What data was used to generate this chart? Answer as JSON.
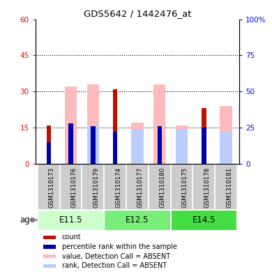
{
  "title": "GDS5642 / 1442476_at",
  "samples": [
    "GSM1310173",
    "GSM1310176",
    "GSM1310179",
    "GSM1310174",
    "GSM1310177",
    "GSM1310180",
    "GSM1310175",
    "GSM1310178",
    "GSM1310181"
  ],
  "age_groups": [
    {
      "label": "E11.5",
      "indices": [
        0,
        1,
        2
      ]
    },
    {
      "label": "E12.5",
      "indices": [
        3,
        4,
        5
      ]
    },
    {
      "label": "E14.5",
      "indices": [
        6,
        7,
        8
      ]
    }
  ],
  "count_values": [
    16,
    0,
    0,
    31,
    0,
    0,
    0,
    23,
    0
  ],
  "rank_values": [
    15,
    28,
    26,
    22,
    0,
    26,
    0,
    25,
    0
  ],
  "value_absent": [
    0,
    32,
    33,
    0,
    17,
    33,
    16,
    0,
    24
  ],
  "rank_absent": [
    0,
    0,
    26,
    0,
    24,
    0,
    24,
    0,
    22
  ],
  "ylim_left": [
    0,
    60
  ],
  "yticks_left": [
    0,
    15,
    30,
    45,
    60
  ],
  "ytick_labels_left": [
    "0",
    "15",
    "30",
    "45",
    "60"
  ],
  "ytick_labels_right": [
    "0",
    "25",
    "50",
    "75",
    "100%"
  ],
  "color_count": "#bb1100",
  "color_rank": "#0000aa",
  "color_value_absent": "#ffbbbb",
  "color_rank_absent": "#bbccff",
  "age_group_colors": [
    "#ccffcc",
    "#77ee77",
    "#44dd44"
  ],
  "sample_box_color": "#cccccc",
  "legend_items": [
    {
      "label": "count",
      "color": "#bb1100"
    },
    {
      "label": "percentile rank within the sample",
      "color": "#0000aa"
    },
    {
      "label": "value, Detection Call = ABSENT",
      "color": "#ffbbbb"
    },
    {
      "label": "rank, Detection Call = ABSENT",
      "color": "#bbccff"
    }
  ]
}
